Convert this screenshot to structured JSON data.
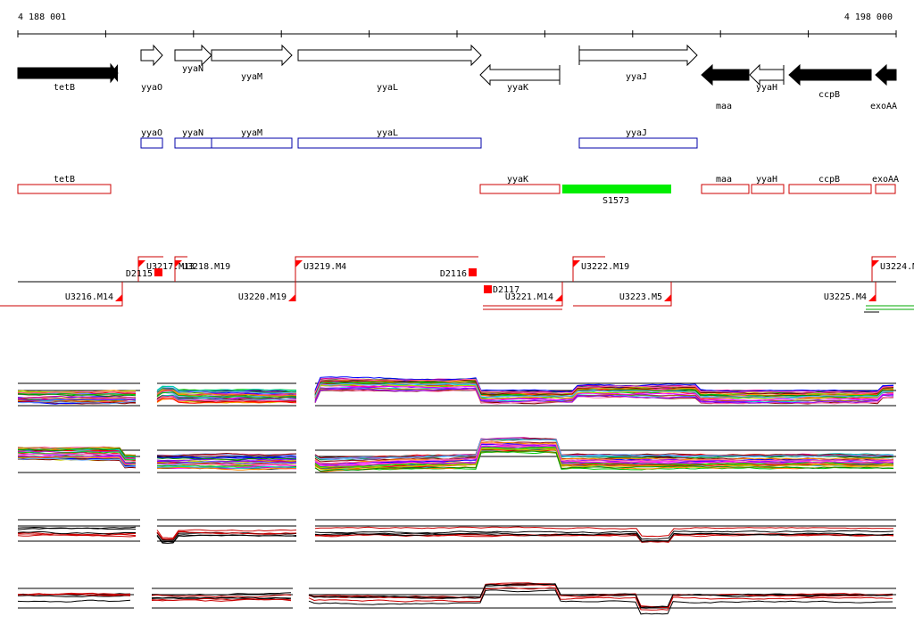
{
  "coordinates": {
    "start": "4 188 001",
    "end": "4 198 000"
  },
  "genes": [
    {
      "name": "tetB",
      "strand": "-",
      "filled": true
    },
    {
      "name": "yyaO",
      "strand": "+",
      "filled": false
    },
    {
      "name": "yyaN",
      "strand": "+",
      "filled": false
    },
    {
      "name": "yyaM",
      "strand": "+",
      "filled": false
    },
    {
      "name": "yyaL",
      "strand": "+",
      "filled": false
    },
    {
      "name": "yyaK",
      "strand": "-",
      "filled": false
    },
    {
      "name": "yyaJ",
      "strand": "+",
      "filled": false
    },
    {
      "name": "maa",
      "strand": "-",
      "filled": true
    },
    {
      "name": "yyaH",
      "strand": "-",
      "filled": false
    },
    {
      "name": "ccpB",
      "strand": "-",
      "filled": true
    },
    {
      "name": "exoAA",
      "strand": "-",
      "filled": true
    }
  ],
  "plus_strand_boxes": [
    "yyaO",
    "yyaN",
    "yyaM",
    "yyaL",
    "yyaJ"
  ],
  "minus_strand_boxes": [
    "tetB",
    "yyaK",
    "maa",
    "yyaH",
    "ccpB",
    "exoAA"
  ],
  "feature": {
    "name": "S1573",
    "color": "#00ee00"
  },
  "upper_segments": [
    "U3217.M13",
    "U3218.M19",
    "U3219.M4",
    "U3222.M19",
    "U3224.M"
  ],
  "lower_segments": [
    "U3216.M14",
    "U3220.M19",
    "U3221.M14",
    "U3223.M5",
    "U3225.M4"
  ],
  "d_markers": [
    "D2115",
    "D2116",
    "D2117"
  ],
  "colors": {
    "feature_box": "#cc0000",
    "plus_box": "#0000aa",
    "marker": "#ff0000",
    "signal": "#cc0000"
  }
}
